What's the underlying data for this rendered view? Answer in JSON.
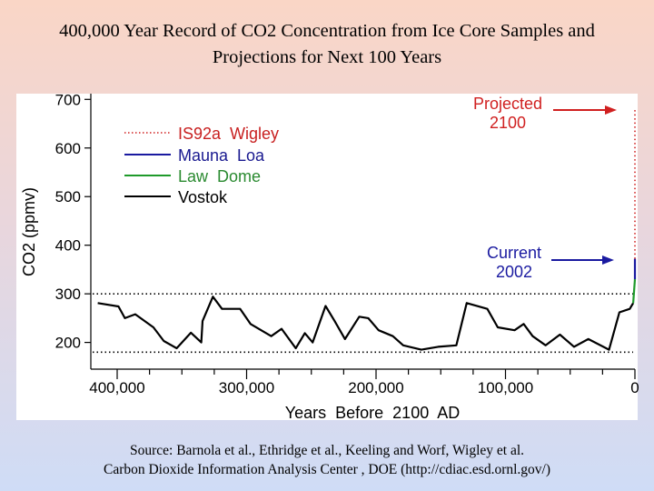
{
  "slide": {
    "title_line1": "400,000 Year Record of CO2 Concentration from Ice Core Samples and",
    "title_line2": "Projections for Next 100 Years",
    "source_line1": "Source:  Barnola et al., Ethridge et al., Keeling and Worf, Wigley et al.",
    "source_line2": "Carbon Dioxide Information Analysis Center , DOE (http://cdiac.esd.ornl.gov/)"
  },
  "chart_data": {
    "type": "line",
    "xlabel": "Years  Before  2100  AD",
    "ylabel": "CO2 (ppmv)",
    "xlim": [
      420000,
      0
    ],
    "ylim": [
      145,
      700
    ],
    "x_reversed": true,
    "xticks": [
      400000,
      300000,
      200000,
      100000,
      0
    ],
    "xtick_labels": [
      "400,000",
      "300,000",
      "200,000",
      "100,000",
      "0"
    ],
    "yticks": [
      200,
      300,
      400,
      500,
      600,
      700
    ],
    "ytick_labels": [
      "200",
      "300",
      "400",
      "500",
      "600",
      "700"
    ],
    "grid": false,
    "legend_position": "top-left",
    "reference_lines": [
      300,
      180
    ],
    "series": [
      {
        "name": "IS92a  Wigley",
        "color": "#d02020",
        "style": "dotted",
        "x": [
          0,
          0
        ],
        "y": [
          372,
          680
        ]
      },
      {
        "name": "Mauna  Loa",
        "color": "#1a1aa0",
        "style": "solid",
        "x": [
          0,
          0
        ],
        "y": [
          330,
          372
        ]
      },
      {
        "name": "Law  Dome",
        "color": "#1e9a2a",
        "style": "solid",
        "x": [
          1300,
          0
        ],
        "y": [
          281,
          330
        ]
      },
      {
        "name": "Vostok",
        "color": "#000000",
        "style": "solid",
        "x": [
          415000,
          399000,
          394000,
          386000,
          372000,
          364000,
          354000,
          343000,
          335000,
          334000,
          326000,
          319000,
          305000,
          297000,
          281000,
          273000,
          262000,
          255000,
          249000,
          239000,
          232000,
          224000,
          213000,
          206000,
          198000,
          187000,
          179000,
          165000,
          152000,
          138000,
          130000,
          114000,
          106000,
          93000,
          86000,
          79000,
          69000,
          58000,
          47000,
          36000,
          20000,
          12000,
          4000,
          1300
        ],
        "y": [
          281,
          274,
          250,
          258,
          231,
          203,
          188,
          220,
          200,
          244,
          294,
          269,
          269,
          238,
          213,
          228,
          188,
          219,
          200,
          275,
          244,
          207,
          253,
          250,
          225,
          213,
          194,
          185,
          191,
          194,
          281,
          269,
          231,
          225,
          238,
          213,
          194,
          216,
          191,
          207,
          185,
          262,
          269,
          281
        ]
      }
    ],
    "annotations": [
      {
        "text_line1": "Projected",
        "text_line2": "2100",
        "color": "#d02020",
        "points_to": 680
      },
      {
        "text_line1": "Current",
        "text_line2": "2002",
        "color": "#1a1aa0",
        "points_to": 372
      }
    ]
  }
}
